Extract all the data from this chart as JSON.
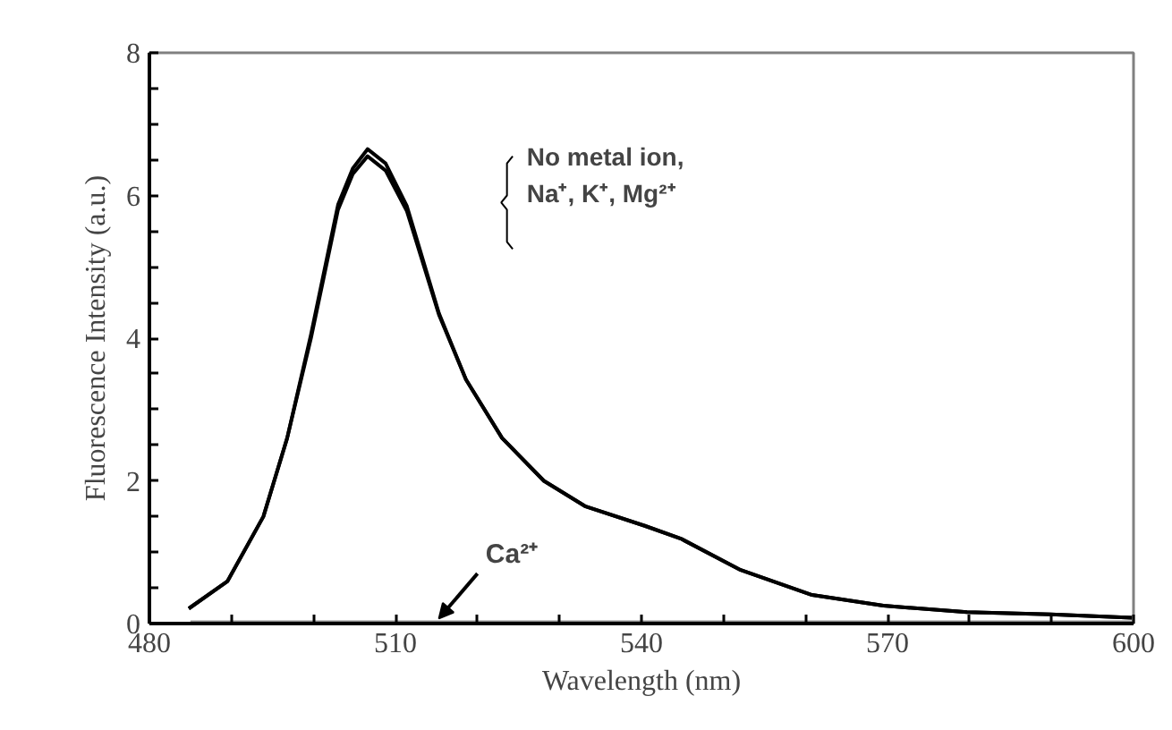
{
  "chart_data": {
    "type": "line",
    "xlabel": "Wavelength (nm)",
    "ylabel": "Fluorescence Intensity (a.u.)",
    "series": [
      {
        "color": "#000000",
        "x": [
          484.8,
          489.5,
          493.9,
          496.8,
          499.7,
          503.0,
          504.8,
          506.6,
          508.8,
          511.4,
          515.3,
          518.6,
          523.0,
          528.1,
          533.2,
          540.4,
          544.8,
          552.1,
          560.8,
          569.5,
          579.7,
          589.9,
          599.8
        ],
        "values": [
          0.21,
          0.59,
          1.5,
          2.6,
          4.05,
          5.87,
          6.38,
          6.65,
          6.45,
          5.85,
          4.35,
          3.42,
          2.6,
          2.0,
          1.64,
          1.37,
          1.19,
          0.75,
          0.4,
          0.25,
          0.16,
          0.13,
          0.08
        ]
      },
      {
        "color": "#000000",
        "x": [
          484.8,
          489.5,
          493.9,
          496.8,
          499.7,
          503.0,
          504.8,
          506.6,
          508.8,
          511.4,
          515.3,
          518.6,
          523.0,
          528.1,
          533.2,
          540.4,
          544.8,
          552.1,
          560.8,
          569.5,
          579.7,
          589.9,
          599.8
        ],
        "values": [
          0.21,
          0.59,
          1.5,
          2.6,
          4.0,
          5.8,
          6.3,
          6.55,
          6.35,
          5.78,
          4.33,
          3.42,
          2.6,
          2.0,
          1.64,
          1.37,
          1.19,
          0.75,
          0.4,
          0.25,
          0.16,
          0.13,
          0.08
        ]
      },
      {
        "color": "#909090",
        "x": [
          485,
          600
        ],
        "values": [
          0.02,
          0.02
        ]
      }
    ],
    "xlim": [
      480,
      600
    ],
    "ylim": [
      0,
      8
    ],
    "xticks": [
      480,
      {
        "value": 490,
        "label": null
      },
      {
        "value": 500,
        "label": null
      },
      510,
      {
        "value": 520,
        "label": null
      },
      {
        "value": 530,
        "label": null
      },
      540,
      {
        "value": 550,
        "label": null
      },
      {
        "value": 560,
        "label": null
      },
      570,
      {
        "value": 580,
        "label": null
      },
      {
        "value": 590,
        "label": null
      },
      600
    ],
    "yticks": [
      0,
      {
        "value": 0.5,
        "label": null
      },
      {
        "value": 1,
        "label": null
      },
      {
        "value": 1.5,
        "label": null
      },
      2,
      {
        "value": 2.5,
        "label": null
      },
      {
        "value": 3,
        "label": null
      },
      {
        "value": 3.5,
        "label": null
      },
      4,
      {
        "value": 4.5,
        "label": null
      },
      {
        "value": 5,
        "label": null
      },
      {
        "value": 5.5,
        "label": null
      },
      6,
      {
        "value": 6.5,
        "label": null
      },
      {
        "value": 7,
        "label": null
      },
      {
        "value": 7.5,
        "label": null
      },
      8
    ],
    "annotations": [
      "No metal ion,\nNa⁺, K⁺, Mg²⁺",
      {
        "text": "Ca²⁺",
        "x": 515,
        "y": 0
      }
    ],
    "grid": false,
    "marker": "none",
    "line_style": "solid"
  }
}
